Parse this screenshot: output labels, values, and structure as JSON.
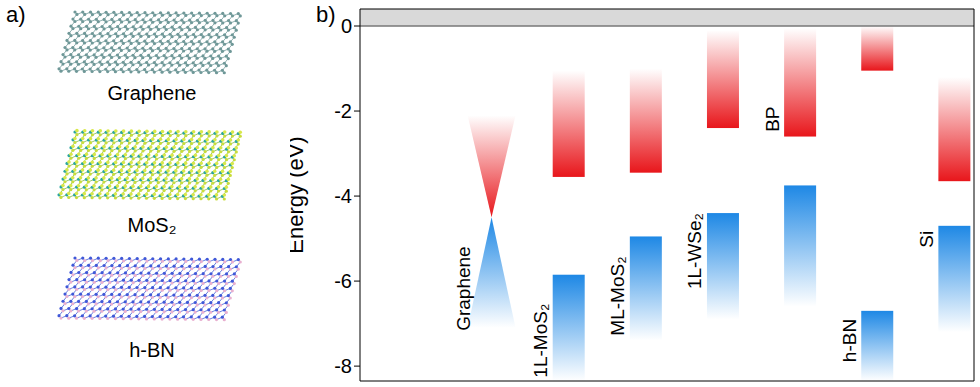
{
  "panel_a": {
    "label": "a)",
    "sheets": [
      "Graphene",
      "MoS₂",
      "h-BN"
    ]
  },
  "chart_data": {
    "type": "bar",
    "panel_label": "b)",
    "y_label": "Energy (eV)",
    "categories": [
      "Graphene",
      "1L-MoS₂",
      "ML-MoS₂",
      "1L-WSe₂",
      "BP",
      "h-BN",
      "Si"
    ],
    "x": [
      1,
      2,
      3,
      4,
      5,
      6,
      7
    ],
    "xlim": [
      -0.7,
      7.26
    ],
    "ylim": [
      -8.35,
      0.4
    ],
    "yticks": [
      0,
      -2,
      -4,
      -6,
      -8
    ],
    "tick_labels": "y",
    "vacuum_level": 0,
    "conduction_band": {
      "color": "#e8161b",
      "values": [
        [
          -4.5,
          -2.1
        ],
        [
          -3.55,
          -1.05
        ],
        [
          -3.45,
          -1.0
        ],
        [
          -2.4,
          -0.1
        ],
        [
          -2.6,
          -0.05
        ],
        [
          -1.05,
          0
        ],
        [
          -3.65,
          -1.2
        ]
      ]
    },
    "valence_band": {
      "color": "#1e88e5",
      "values": [
        [
          -7.1,
          -4.5
        ],
        [
          -8.35,
          -5.85
        ],
        [
          -7.4,
          -4.95
        ],
        [
          -6.9,
          -4.4
        ],
        [
          -6.6,
          -3.75
        ],
        [
          -8.35,
          -6.7
        ],
        [
          -7.2,
          -4.7
        ]
      ]
    }
  }
}
